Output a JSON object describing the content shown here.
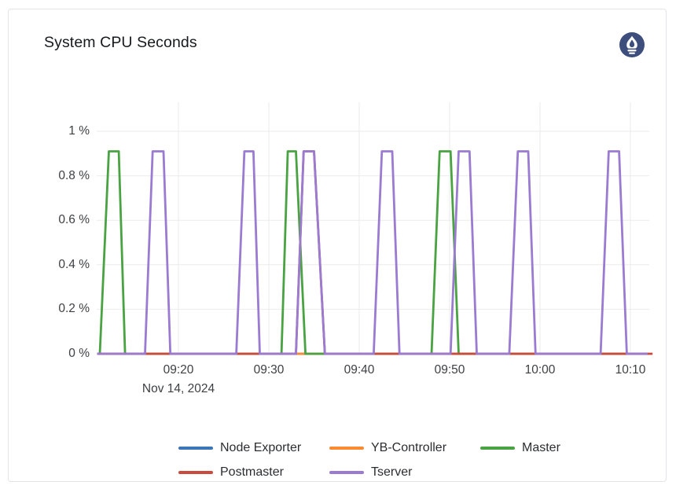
{
  "card": {
    "title": "System CPU Seconds",
    "logo": {
      "name": "prometheus-icon",
      "color": "#3d4d7c"
    }
  },
  "chart_data": {
    "type": "line",
    "title": "System CPU Seconds",
    "grid": true,
    "legend_position": "bottom",
    "legend_rows": [
      [
        "Node Exporter",
        "YB-Controller",
        "Master"
      ],
      [
        "Postmaster",
        "Tserver"
      ]
    ],
    "x_axis": {
      "date_label": "Nov 14, 2024",
      "unit": "time of day",
      "range_minutes_after_0900": [
        10.9,
        72.1
      ],
      "ticks": [
        {
          "minutes": 20,
          "label": "09:20"
        },
        {
          "minutes": 30,
          "label": "09:30"
        },
        {
          "minutes": 40,
          "label": "09:40"
        },
        {
          "minutes": 50,
          "label": "09:50"
        },
        {
          "minutes": 60,
          "label": "10:00"
        },
        {
          "minutes": 70,
          "label": "10:10"
        }
      ]
    },
    "y_axis": {
      "unit": "percent",
      "range": [
        0,
        1.13
      ],
      "ticks": [
        {
          "value": 0,
          "label": "0 %"
        },
        {
          "value": 0.2,
          "label": "0.2 %"
        },
        {
          "value": 0.4,
          "label": "0.4 %"
        },
        {
          "value": 0.6,
          "label": "0.6 %"
        },
        {
          "value": 0.8,
          "label": "0.8 %"
        },
        {
          "value": 1,
          "label": "1 %"
        }
      ]
    },
    "peak_value_pct": 0.91,
    "series": [
      {
        "name": "Node Exporter",
        "color": "#3a76b8",
        "points_min_pct": [
          [
            11.0,
            0
          ],
          [
            71.9,
            0
          ]
        ]
      },
      {
        "name": "YB-Controller",
        "color": "#fa8b33",
        "points_min_pct": [
          [
            11.0,
            0
          ],
          [
            71.9,
            0
          ]
        ]
      },
      {
        "name": "Master",
        "color": "#49a342",
        "points_min_pct": [
          [
            11.0,
            0
          ],
          [
            11.3,
            0
          ],
          [
            12.3,
            0.91
          ],
          [
            13.4,
            0.91
          ],
          [
            14.1,
            0
          ],
          [
            31.4,
            0
          ],
          [
            32.1,
            0.91
          ],
          [
            33.0,
            0.91
          ],
          [
            34.05,
            0
          ],
          [
            48.0,
            0
          ],
          [
            48.9,
            0.91
          ],
          [
            50.1,
            0.91
          ],
          [
            51.0,
            0
          ],
          [
            71.9,
            0
          ]
        ]
      },
      {
        "name": "Postmaster",
        "color": "#cb4a3d",
        "points_min_pct": [
          [
            11.0,
            0
          ],
          [
            33.0,
            0
          ],
          [
            33.85,
            0.91
          ],
          [
            35.0,
            0.91
          ],
          [
            36.2,
            0
          ],
          [
            72.45,
            0
          ]
        ]
      },
      {
        "name": "Tserver",
        "color": "#9a7bd1",
        "points_min_pct": [
          [
            11.0,
            0
          ],
          [
            16.3,
            0
          ],
          [
            17.15,
            0.91
          ],
          [
            18.35,
            0.91
          ],
          [
            19.1,
            0
          ],
          [
            26.4,
            0
          ],
          [
            27.3,
            0.91
          ],
          [
            28.3,
            0.91
          ],
          [
            29.0,
            0
          ],
          [
            33.0,
            0
          ],
          [
            33.85,
            0.91
          ],
          [
            35.0,
            0.91
          ],
          [
            36.2,
            0
          ],
          [
            41.6,
            0
          ],
          [
            42.5,
            0.91
          ],
          [
            43.65,
            0.91
          ],
          [
            44.45,
            0
          ],
          [
            50.1,
            0
          ],
          [
            51.0,
            0.91
          ],
          [
            52.2,
            0.91
          ],
          [
            53.0,
            0
          ],
          [
            56.6,
            0
          ],
          [
            57.55,
            0.91
          ],
          [
            58.7,
            0.91
          ],
          [
            59.5,
            0
          ],
          [
            66.7,
            0
          ],
          [
            67.6,
            0.91
          ],
          [
            68.75,
            0.91
          ],
          [
            69.6,
            0
          ],
          [
            71.9,
            0
          ]
        ]
      }
    ]
  },
  "style": {
    "grid_color": "#ebebeb",
    "tick_text_color": "#3d3f42",
    "legend_text_color": "#2b2d30",
    "card_border_color": "#e2e4e7",
    "line_width": 2.8
  }
}
